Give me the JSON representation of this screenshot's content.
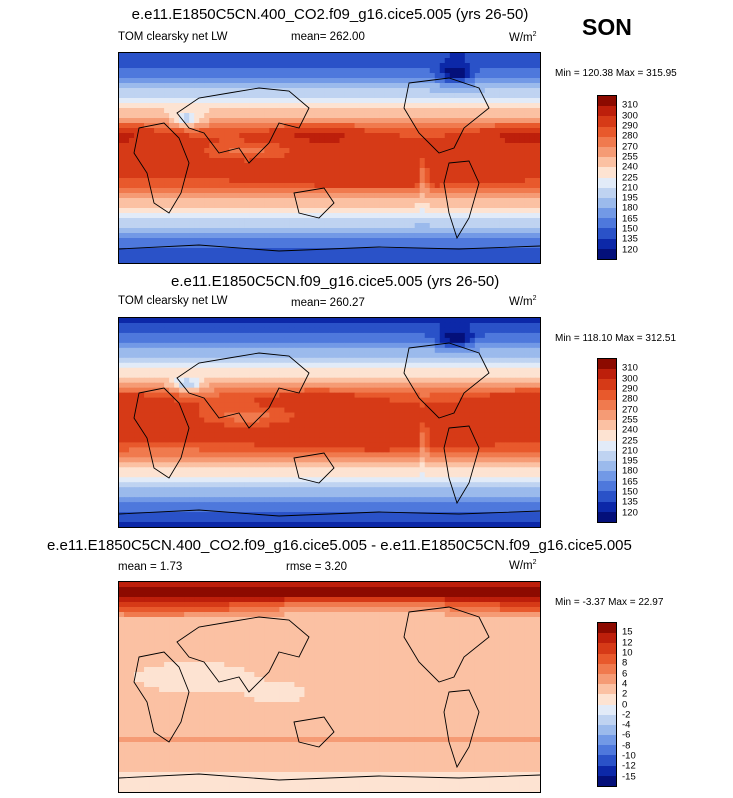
{
  "season": "SON",
  "panels": [
    {
      "title": "e.e11.E1850C5CN.400_CO2.f09_g16.cice5.005 (yrs 26-50)",
      "variable": "TOM clearsky net LW",
      "stat_left": "mean= 262.00",
      "stat_mid": "",
      "units": "W/m",
      "units_exp": "2",
      "minmax": "Min = 120.38 Max = 315.95",
      "levels": [
        "310",
        "300",
        "290",
        "280",
        "270",
        "255",
        "240",
        "225",
        "210",
        "195",
        "180",
        "165",
        "150",
        "135",
        "120"
      ],
      "palette": [
        "#8c0a00",
        "#bd1f0b",
        "#d63a17",
        "#e8592c",
        "#f07a4e",
        "#f59b75",
        "#fbc1a3",
        "#fde3d2",
        "#e2ebf8",
        "#bfd3f1",
        "#9bbaec",
        "#7299e6",
        "#4e78dc",
        "#2a52c8",
        "#0c28a8",
        "#04107a"
      ]
    },
    {
      "title": "e.e11.E1850C5CN.f09_g16.cice5.005 (yrs 26-50)",
      "variable": "TOM clearsky net LW",
      "stat_left": "mean= 260.27",
      "stat_mid": "",
      "units": "W/m",
      "units_exp": "2",
      "minmax": "Min = 118.10 Max = 312.51",
      "levels": [
        "310",
        "300",
        "290",
        "280",
        "270",
        "255",
        "240",
        "225",
        "210",
        "195",
        "180",
        "165",
        "150",
        "135",
        "120"
      ],
      "palette": [
        "#8c0a00",
        "#bd1f0b",
        "#d63a17",
        "#e8592c",
        "#f07a4e",
        "#f59b75",
        "#fbc1a3",
        "#fde3d2",
        "#e2ebf8",
        "#bfd3f1",
        "#9bbaec",
        "#7299e6",
        "#4e78dc",
        "#2a52c8",
        "#0c28a8",
        "#04107a"
      ]
    },
    {
      "title": "e.e11.E1850C5CN.400_CO2.f09_g16.cice5.005 - e.e11.E1850C5CN.f09_g16.cice5.005",
      "variable": "",
      "stat_left": "mean =   1.73",
      "stat_mid": "rmse =   3.20",
      "units": "W/m",
      "units_exp": "2",
      "minmax": "Min =  -3.37 Max =  22.97",
      "levels": [
        "15",
        "12",
        "10",
        "8",
        "6",
        "4",
        "2",
        "0",
        "-2",
        "-4",
        "-6",
        "-8",
        "-10",
        "-12",
        "-15"
      ],
      "palette": [
        "#8c0a00",
        "#bd1f0b",
        "#d63a17",
        "#e8592c",
        "#f07a4e",
        "#f59b75",
        "#fbc1a3",
        "#fde3d2",
        "#e2ebf8",
        "#bfd3f1",
        "#9bbaec",
        "#7299e6",
        "#4e78dc",
        "#2a52c8",
        "#0c28a8",
        "#04107a"
      ]
    }
  ]
}
